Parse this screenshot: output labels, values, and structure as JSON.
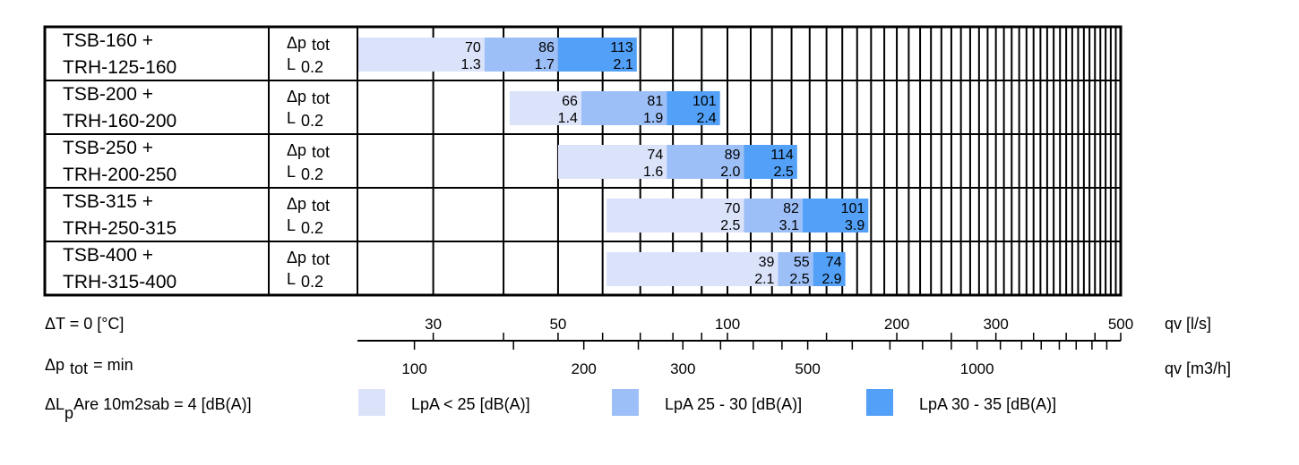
{
  "conditions": {
    "delta_t": "ΔT = 0 [°C]",
    "dp_prefix": "Δp",
    "dp_sub": "tot",
    "dp_suffix": "= min",
    "dl_prefix": "ΔL",
    "dl_sub": "p",
    "dl_suffix": "Are 10m2sab = 4 [dB(A)]"
  },
  "row_labels": {
    "dp_main": "Δp",
    "dp_sub": "tot",
    "l_main": "L",
    "l_sub": "0.2"
  },
  "axes": {
    "ls_label": "qv [l/s]",
    "m3h_label": "qv [m3/h]",
    "ls_ticks": [
      "30",
      "50",
      "100",
      "200",
      "300",
      "500"
    ],
    "m3h_ticks": [
      "100",
      "200",
      "300",
      "500",
      "1000"
    ]
  },
  "legend": [
    {
      "label": "LpA < 25 [dB(A)]",
      "color": "#dbe3fb"
    },
    {
      "label": "LpA 25 - 30 [dB(A)]",
      "color": "#9dbff7"
    },
    {
      "label": "LpA 30 - 35 [dB(A)]",
      "color": "#52a0f7"
    }
  ],
  "chart_data": {
    "type": "bar",
    "x_axis": {
      "quantity": "qv",
      "unit": "l/s",
      "scale": "log",
      "range": [
        22,
        500
      ]
    },
    "x2_axis": {
      "quantity": "qv",
      "unit": "m3/h"
    },
    "colors": [
      "#dbe3fb",
      "#9dbff7",
      "#52a0f7"
    ],
    "rows": [
      {
        "name_line1": "TSB-160 +",
        "name_line2": "TRH-125-160",
        "start": 22,
        "segments": [
          {
            "end": 37,
            "dp": "70",
            "l": "1.3"
          },
          {
            "end": 50,
            "dp": "86",
            "l": "1.7"
          },
          {
            "end": 69,
            "dp": "113",
            "l": "2.1"
          }
        ]
      },
      {
        "name_line1": "TSB-200 +",
        "name_line2": "TRH-160-200",
        "start": 41,
        "segments": [
          {
            "end": 55,
            "dp": "66",
            "l": "1.4"
          },
          {
            "end": 78,
            "dp": "81",
            "l": "1.9"
          },
          {
            "end": 97,
            "dp": "101",
            "l": "2.4"
          }
        ]
      },
      {
        "name_line1": "TSB-250 +",
        "name_line2": "TRH-200-250",
        "start": 50,
        "segments": [
          {
            "end": 78,
            "dp": "74",
            "l": "1.6"
          },
          {
            "end": 107,
            "dp": "89",
            "l": "2.0"
          },
          {
            "end": 133,
            "dp": "114",
            "l": "2.5"
          }
        ]
      },
      {
        "name_line1": "TSB-315 +",
        "name_line2": "TRH-250-315",
        "start": 61,
        "segments": [
          {
            "end": 107,
            "dp": "70",
            "l": "2.5"
          },
          {
            "end": 136,
            "dp": "82",
            "l": "3.1"
          },
          {
            "end": 178,
            "dp": "101",
            "l": "3.9"
          }
        ]
      },
      {
        "name_line1": "TSB-400 +",
        "name_line2": "TRH-315-400",
        "start": 61,
        "segments": [
          {
            "end": 123,
            "dp": "39",
            "l": "2.1"
          },
          {
            "end": 142,
            "dp": "55",
            "l": "2.5"
          },
          {
            "end": 162,
            "dp": "74",
            "l": "2.9"
          }
        ]
      }
    ]
  }
}
